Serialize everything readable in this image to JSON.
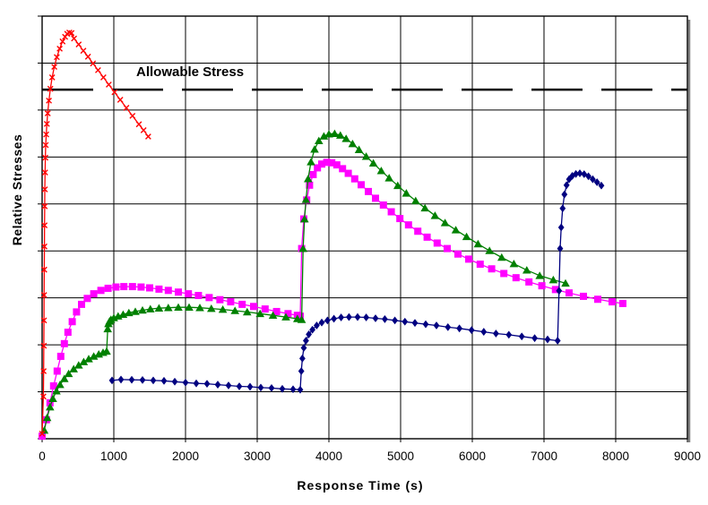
{
  "figure": {
    "background": "#FFFFFF",
    "plot_border_color": "#000000",
    "gridline_color": "#000000",
    "shadow_color": "#808080"
  },
  "chart_data": {
    "type": "line",
    "title": "",
    "xlabel": "Response Time (s)",
    "ylabel": "Relative Stresses",
    "xlim": [
      0,
      9000
    ],
    "x_ticks": [
      "0",
      "1000",
      "2000",
      "3000",
      "4000",
      "5000",
      "6000",
      "7000",
      "8000",
      "9000"
    ],
    "y_axis": {
      "tick_labels_visible": false,
      "divisions": 9,
      "normalized_range": [
        0,
        1
      ]
    },
    "grid": "both",
    "legend": "none",
    "annotation": {
      "label": "Allowable Stress",
      "y_normalized": 0.826,
      "line_style": "long-dash",
      "line_color": "#000000"
    },
    "series": [
      {
        "name": "stress-curve-magenta-square",
        "color": "#FF00FF",
        "marker": "square",
        "points": [
          [
            0,
            0.006
          ],
          [
            60,
            0.045
          ],
          [
            110,
            0.085
          ],
          [
            160,
            0.125
          ],
          [
            210,
            0.16
          ],
          [
            260,
            0.195
          ],
          [
            310,
            0.225
          ],
          [
            360,
            0.252
          ],
          [
            420,
            0.277
          ],
          [
            480,
            0.3
          ],
          [
            550,
            0.318
          ],
          [
            630,
            0.332
          ],
          [
            720,
            0.343
          ],
          [
            820,
            0.351
          ],
          [
            920,
            0.356
          ],
          [
            1030,
            0.359
          ],
          [
            1140,
            0.36
          ],
          [
            1260,
            0.36
          ],
          [
            1380,
            0.359
          ],
          [
            1500,
            0.357
          ],
          [
            1630,
            0.354
          ],
          [
            1760,
            0.351
          ],
          [
            1900,
            0.347
          ],
          [
            2040,
            0.343
          ],
          [
            2180,
            0.339
          ],
          [
            2330,
            0.334
          ],
          [
            2480,
            0.329
          ],
          [
            2630,
            0.324
          ],
          [
            2790,
            0.318
          ],
          [
            2950,
            0.313
          ],
          [
            3110,
            0.307
          ],
          [
            3270,
            0.301
          ],
          [
            3430,
            0.296
          ],
          [
            3560,
            0.292
          ],
          [
            3600,
            0.29
          ],
          [
            3620,
            0.45
          ],
          [
            3650,
            0.52
          ],
          [
            3690,
            0.565
          ],
          [
            3730,
            0.6
          ],
          [
            3780,
            0.625
          ],
          [
            3840,
            0.641
          ],
          [
            3900,
            0.65
          ],
          [
            3970,
            0.654
          ],
          [
            4040,
            0.653
          ],
          [
            4110,
            0.648
          ],
          [
            4190,
            0.639
          ],
          [
            4270,
            0.628
          ],
          [
            4360,
            0.615
          ],
          [
            4450,
            0.601
          ],
          [
            4550,
            0.585
          ],
          [
            4650,
            0.569
          ],
          [
            4760,
            0.553
          ],
          [
            4870,
            0.537
          ],
          [
            4990,
            0.521
          ],
          [
            5110,
            0.506
          ],
          [
            5240,
            0.491
          ],
          [
            5370,
            0.477
          ],
          [
            5510,
            0.463
          ],
          [
            5650,
            0.45
          ],
          [
            5800,
            0.437
          ],
          [
            5950,
            0.425
          ],
          [
            6110,
            0.413
          ],
          [
            6270,
            0.402
          ],
          [
            6440,
            0.391
          ],
          [
            6610,
            0.381
          ],
          [
            6790,
            0.371
          ],
          [
            6970,
            0.362
          ],
          [
            7160,
            0.353
          ],
          [
            7350,
            0.345
          ],
          [
            7550,
            0.337
          ],
          [
            7750,
            0.33
          ],
          [
            7950,
            0.324
          ],
          [
            8100,
            0.32
          ]
        ]
      },
      {
        "name": "stress-curve-green-triangle",
        "color": "#008000",
        "marker": "triangle",
        "points": [
          [
            30,
            0.02
          ],
          [
            70,
            0.05
          ],
          [
            110,
            0.075
          ],
          [
            150,
            0.095
          ],
          [
            200,
            0.113
          ],
          [
            250,
            0.128
          ],
          [
            310,
            0.142
          ],
          [
            370,
            0.154
          ],
          [
            440,
            0.165
          ],
          [
            510,
            0.174
          ],
          [
            580,
            0.182
          ],
          [
            650,
            0.189
          ],
          [
            720,
            0.195
          ],
          [
            790,
            0.2
          ],
          [
            850,
            0.204
          ],
          [
            900,
            0.207
          ],
          [
            915,
            0.26
          ],
          [
            925,
            0.272
          ],
          [
            940,
            0.278
          ],
          [
            960,
            0.282
          ],
          [
            1000,
            0.286
          ],
          [
            1060,
            0.29
          ],
          [
            1130,
            0.294
          ],
          [
            1210,
            0.298
          ],
          [
            1300,
            0.301
          ],
          [
            1400,
            0.304
          ],
          [
            1510,
            0.307
          ],
          [
            1630,
            0.309
          ],
          [
            1760,
            0.31
          ],
          [
            1900,
            0.311
          ],
          [
            2050,
            0.311
          ],
          [
            2200,
            0.31
          ],
          [
            2360,
            0.308
          ],
          [
            2520,
            0.306
          ],
          [
            2690,
            0.303
          ],
          [
            2860,
            0.3
          ],
          [
            3040,
            0.296
          ],
          [
            3220,
            0.292
          ],
          [
            3400,
            0.288
          ],
          [
            3560,
            0.284
          ],
          [
            3620,
            0.282
          ],
          [
            3640,
            0.45
          ],
          [
            3660,
            0.52
          ],
          [
            3680,
            0.566
          ],
          [
            3710,
            0.615
          ],
          [
            3750,
            0.655
          ],
          [
            3800,
            0.685
          ],
          [
            3860,
            0.705
          ],
          [
            3930,
            0.716
          ],
          [
            4000,
            0.721
          ],
          [
            4080,
            0.722
          ],
          [
            4160,
            0.718
          ],
          [
            4240,
            0.71
          ],
          [
            4330,
            0.698
          ],
          [
            4420,
            0.684
          ],
          [
            4520,
            0.668
          ],
          [
            4620,
            0.652
          ],
          [
            4730,
            0.634
          ],
          [
            4840,
            0.617
          ],
          [
            4960,
            0.599
          ],
          [
            5080,
            0.581
          ],
          [
            5210,
            0.563
          ],
          [
            5340,
            0.546
          ],
          [
            5480,
            0.528
          ],
          [
            5620,
            0.511
          ],
          [
            5770,
            0.494
          ],
          [
            5920,
            0.478
          ],
          [
            6080,
            0.461
          ],
          [
            6240,
            0.445
          ],
          [
            6410,
            0.429
          ],
          [
            6580,
            0.414
          ],
          [
            6760,
            0.399
          ],
          [
            6940,
            0.386
          ],
          [
            7130,
            0.376
          ],
          [
            7300,
            0.368
          ]
        ]
      },
      {
        "name": "stress-curve-blue-diamond",
        "color": "#000080",
        "marker": "diamond",
        "points": [
          [
            975,
            0.138
          ],
          [
            1100,
            0.14
          ],
          [
            1250,
            0.1395
          ],
          [
            1400,
            0.139
          ],
          [
            1550,
            0.138
          ],
          [
            1700,
            0.137
          ],
          [
            1850,
            0.135
          ],
          [
            2000,
            0.133
          ],
          [
            2150,
            0.131
          ],
          [
            2300,
            0.13
          ],
          [
            2450,
            0.128
          ],
          [
            2600,
            0.126
          ],
          [
            2750,
            0.124
          ],
          [
            2900,
            0.123
          ],
          [
            3050,
            0.121
          ],
          [
            3200,
            0.12
          ],
          [
            3350,
            0.118
          ],
          [
            3500,
            0.117
          ],
          [
            3600,
            0.116
          ],
          [
            3615,
            0.16
          ],
          [
            3630,
            0.19
          ],
          [
            3650,
            0.215
          ],
          [
            3680,
            0.232
          ],
          [
            3720,
            0.247
          ],
          [
            3770,
            0.258
          ],
          [
            3830,
            0.268
          ],
          [
            3900,
            0.275
          ],
          [
            3980,
            0.28
          ],
          [
            4070,
            0.284
          ],
          [
            4170,
            0.287
          ],
          [
            4280,
            0.288
          ],
          [
            4400,
            0.288
          ],
          [
            4520,
            0.287
          ],
          [
            4650,
            0.285
          ],
          [
            4780,
            0.283
          ],
          [
            4920,
            0.28
          ],
          [
            5060,
            0.277
          ],
          [
            5200,
            0.274
          ],
          [
            5350,
            0.271
          ],
          [
            5500,
            0.268
          ],
          [
            5660,
            0.264
          ],
          [
            5820,
            0.261
          ],
          [
            5990,
            0.257
          ],
          [
            6160,
            0.253
          ],
          [
            6330,
            0.249
          ],
          [
            6510,
            0.246
          ],
          [
            6690,
            0.242
          ],
          [
            6870,
            0.238
          ],
          [
            7050,
            0.235
          ],
          [
            7190,
            0.232
          ],
          [
            7210,
            0.35
          ],
          [
            7225,
            0.45
          ],
          [
            7240,
            0.5
          ],
          [
            7260,
            0.545
          ],
          [
            7285,
            0.578
          ],
          [
            7315,
            0.6
          ],
          [
            7350,
            0.614
          ],
          [
            7395,
            0.622
          ],
          [
            7445,
            0.6265
          ],
          [
            7500,
            0.628
          ],
          [
            7560,
            0.626
          ],
          [
            7620,
            0.621
          ],
          [
            7680,
            0.614
          ],
          [
            7740,
            0.607
          ],
          [
            7800,
            0.599
          ]
        ]
      },
      {
        "name": "stress-curve-red-x",
        "color": "#FF0000",
        "marker": "x",
        "points": [
          [
            0,
            0.012
          ],
          [
            18,
            0.1
          ],
          [
            21,
            0.16
          ],
          [
            24,
            0.22
          ],
          [
            26,
            0.28
          ],
          [
            28,
            0.34
          ],
          [
            30,
            0.4
          ],
          [
            32,
            0.455
          ],
          [
            34,
            0.505
          ],
          [
            36,
            0.55
          ],
          [
            38,
            0.59
          ],
          [
            41,
            0.63
          ],
          [
            45,
            0.665
          ],
          [
            50,
            0.695
          ],
          [
            57,
            0.72
          ],
          [
            66,
            0.745
          ],
          [
            78,
            0.77
          ],
          [
            95,
            0.8
          ],
          [
            115,
            0.828
          ],
          [
            140,
            0.855
          ],
          [
            170,
            0.88
          ],
          [
            205,
            0.903
          ],
          [
            245,
            0.923
          ],
          [
            285,
            0.94
          ],
          [
            320,
            0.951
          ],
          [
            350,
            0.958
          ],
          [
            380,
            0.961
          ],
          [
            410,
            0.96
          ],
          [
            445,
            0.947
          ],
          [
            510,
            0.933
          ],
          [
            575,
            0.918
          ],
          [
            640,
            0.904
          ],
          [
            710,
            0.888
          ],
          [
            780,
            0.872
          ],
          [
            855,
            0.855
          ],
          [
            930,
            0.838
          ],
          [
            1010,
            0.82
          ],
          [
            1090,
            0.802
          ],
          [
            1175,
            0.783
          ],
          [
            1260,
            0.764
          ],
          [
            1350,
            0.744
          ],
          [
            1415,
            0.73
          ],
          [
            1480,
            0.715
          ]
        ]
      }
    ]
  }
}
